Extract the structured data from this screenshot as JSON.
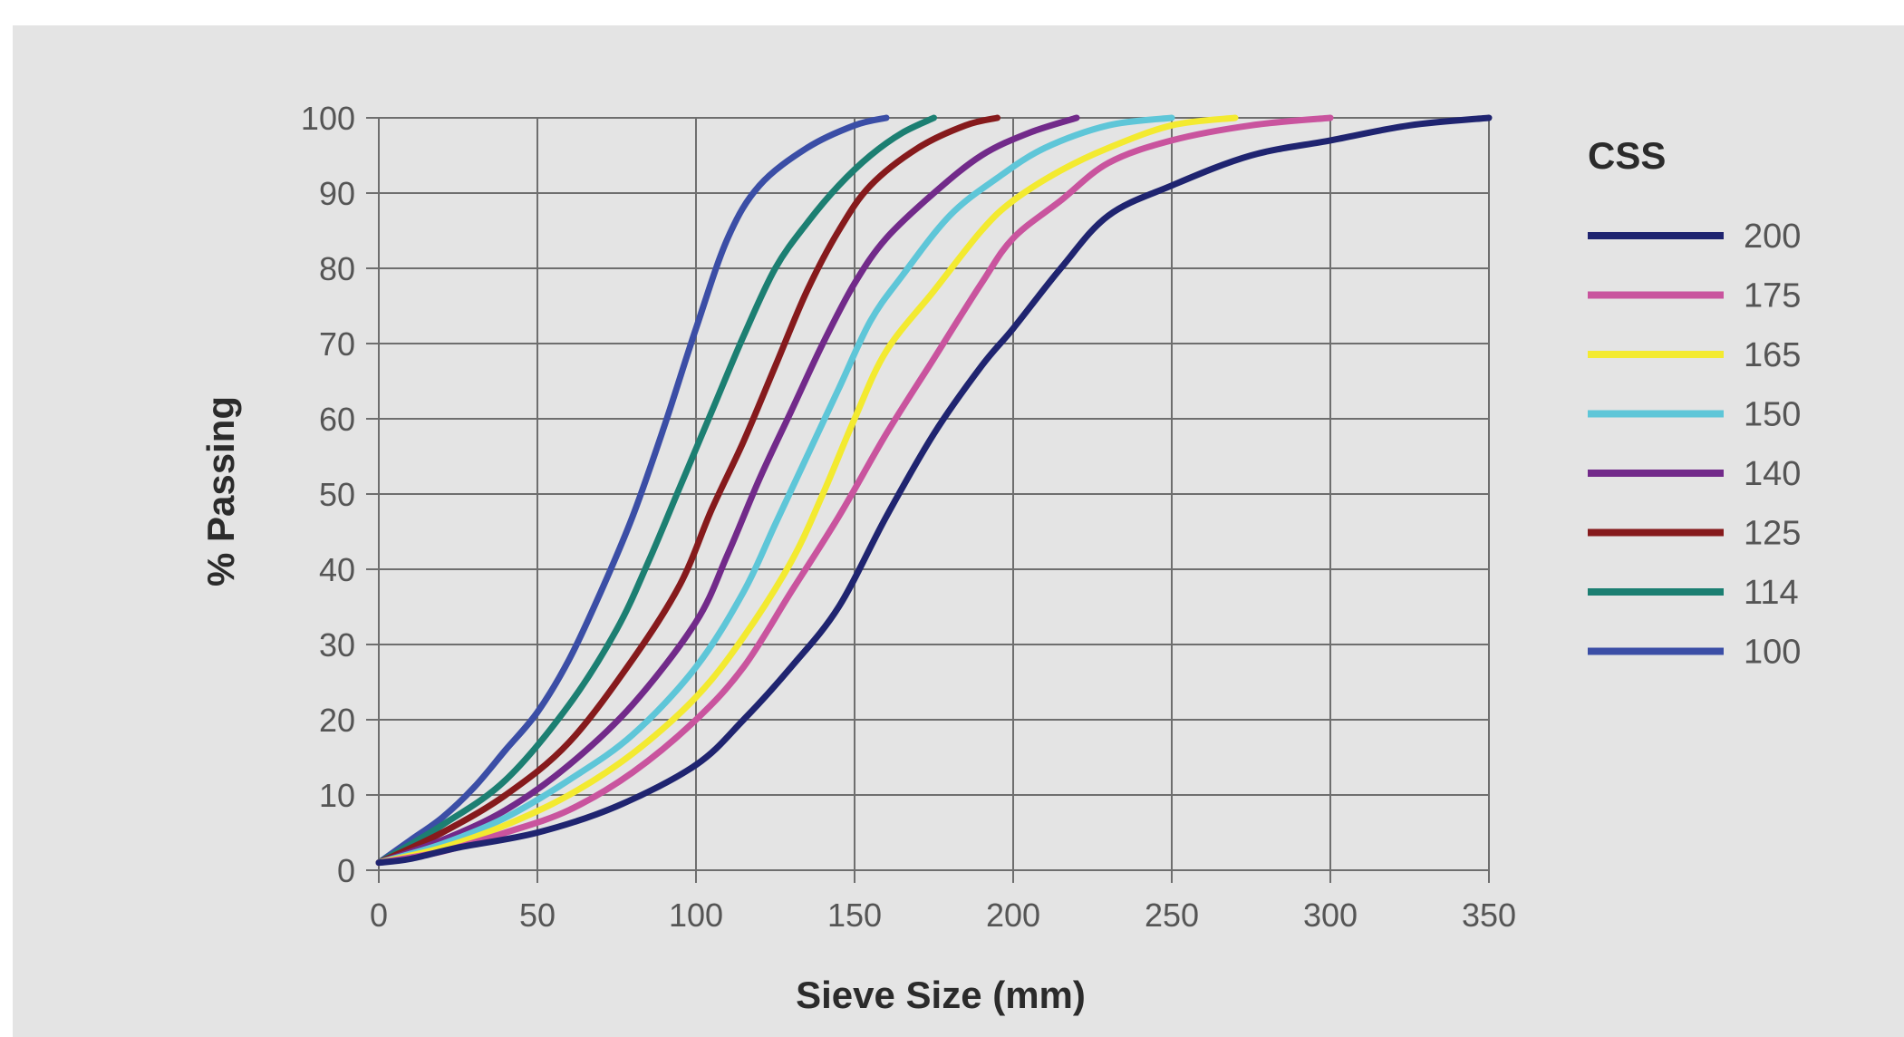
{
  "chart_data": {
    "type": "line",
    "xlabel": "Sieve Size (mm)",
    "ylabel": "% Passing",
    "xlim": [
      0,
      350
    ],
    "ylim": [
      0,
      100
    ],
    "x_ticks": [
      0,
      50,
      100,
      150,
      200,
      250,
      300,
      350
    ],
    "y_ticks": [
      0,
      10,
      20,
      30,
      40,
      50,
      60,
      70,
      80,
      90,
      100
    ],
    "grid": true,
    "legend_title": "CSS",
    "legend_position": "right",
    "series": [
      {
        "name": "200",
        "color": "#1f2470",
        "points": [
          [
            0,
            1
          ],
          [
            10,
            1.5
          ],
          [
            25,
            3
          ],
          [
            50,
            5
          ],
          [
            75,
            8.5
          ],
          [
            100,
            14
          ],
          [
            115,
            20
          ],
          [
            130,
            27
          ],
          [
            145,
            35
          ],
          [
            160,
            47
          ],
          [
            175,
            58
          ],
          [
            190,
            67
          ],
          [
            200,
            72
          ],
          [
            215,
            80
          ],
          [
            230,
            87
          ],
          [
            250,
            91
          ],
          [
            275,
            95
          ],
          [
            300,
            97
          ],
          [
            325,
            99
          ],
          [
            350,
            100
          ]
        ]
      },
      {
        "name": "175",
        "color": "#c9549e",
        "points": [
          [
            0,
            1
          ],
          [
            20,
            2.5
          ],
          [
            40,
            5
          ],
          [
            60,
            8
          ],
          [
            80,
            13
          ],
          [
            100,
            20
          ],
          [
            115,
            27
          ],
          [
            130,
            37
          ],
          [
            145,
            47
          ],
          [
            160,
            58
          ],
          [
            175,
            68
          ],
          [
            190,
            78
          ],
          [
            200,
            84
          ],
          [
            215,
            89
          ],
          [
            230,
            94
          ],
          [
            250,
            97
          ],
          [
            275,
            99
          ],
          [
            300,
            100
          ]
        ]
      },
      {
        "name": "165",
        "color": "#f3ea30",
        "points": [
          [
            0,
            1
          ],
          [
            20,
            3
          ],
          [
            40,
            6
          ],
          [
            60,
            10
          ],
          [
            80,
            15.5
          ],
          [
            100,
            23
          ],
          [
            115,
            31
          ],
          [
            130,
            41
          ],
          [
            140,
            50
          ],
          [
            150,
            60
          ],
          [
            160,
            69
          ],
          [
            175,
            77
          ],
          [
            190,
            85
          ],
          [
            200,
            89
          ],
          [
            215,
            93
          ],
          [
            230,
            96
          ],
          [
            250,
            99
          ],
          [
            270,
            100
          ]
        ]
      },
      {
        "name": "150",
        "color": "#5ec6d8",
        "points": [
          [
            0,
            1
          ],
          [
            20,
            3.5
          ],
          [
            40,
            7
          ],
          [
            60,
            12
          ],
          [
            80,
            18
          ],
          [
            100,
            27
          ],
          [
            115,
            37
          ],
          [
            125,
            46
          ],
          [
            135,
            55
          ],
          [
            145,
            64
          ],
          [
            155,
            73
          ],
          [
            165,
            79
          ],
          [
            180,
            87
          ],
          [
            195,
            92
          ],
          [
            210,
            96
          ],
          [
            230,
            99
          ],
          [
            250,
            100
          ]
        ]
      },
      {
        "name": "140",
        "color": "#722a8a",
        "points": [
          [
            0,
            1
          ],
          [
            20,
            4
          ],
          [
            40,
            8
          ],
          [
            60,
            14
          ],
          [
            80,
            22
          ],
          [
            100,
            33
          ],
          [
            110,
            42
          ],
          [
            120,
            52
          ],
          [
            130,
            61
          ],
          [
            140,
            70
          ],
          [
            150,
            78
          ],
          [
            160,
            84
          ],
          [
            175,
            90
          ],
          [
            190,
            95
          ],
          [
            205,
            98
          ],
          [
            220,
            100
          ]
        ]
      },
      {
        "name": "125",
        "color": "#861a1c",
        "points": [
          [
            0,
            1
          ],
          [
            20,
            5
          ],
          [
            40,
            10
          ],
          [
            60,
            17
          ],
          [
            80,
            28
          ],
          [
            95,
            38
          ],
          [
            105,
            48
          ],
          [
            115,
            57
          ],
          [
            125,
            67
          ],
          [
            135,
            77
          ],
          [
            145,
            85
          ],
          [
            155,
            91
          ],
          [
            170,
            96
          ],
          [
            185,
            99
          ],
          [
            195,
            100
          ]
        ]
      },
      {
        "name": "114",
        "color": "#1c7f72",
        "points": [
          [
            0,
            1
          ],
          [
            20,
            6
          ],
          [
            40,
            12
          ],
          [
            60,
            22
          ],
          [
            75,
            32
          ],
          [
            85,
            41
          ],
          [
            95,
            51
          ],
          [
            105,
            61
          ],
          [
            115,
            71
          ],
          [
            125,
            80
          ],
          [
            135,
            86
          ],
          [
            145,
            91
          ],
          [
            155,
            95
          ],
          [
            165,
            98
          ],
          [
            175,
            100
          ]
        ]
      },
      {
        "name": "100",
        "color": "#3b4ea6",
        "points": [
          [
            0,
            1
          ],
          [
            10,
            4
          ],
          [
            20,
            7
          ],
          [
            30,
            11
          ],
          [
            40,
            16
          ],
          [
            50,
            21
          ],
          [
            60,
            28
          ],
          [
            70,
            37
          ],
          [
            80,
            47
          ],
          [
            90,
            59
          ],
          [
            100,
            72
          ],
          [
            110,
            84
          ],
          [
            120,
            91
          ],
          [
            135,
            96
          ],
          [
            150,
            99
          ],
          [
            160,
            100
          ]
        ]
      }
    ]
  }
}
